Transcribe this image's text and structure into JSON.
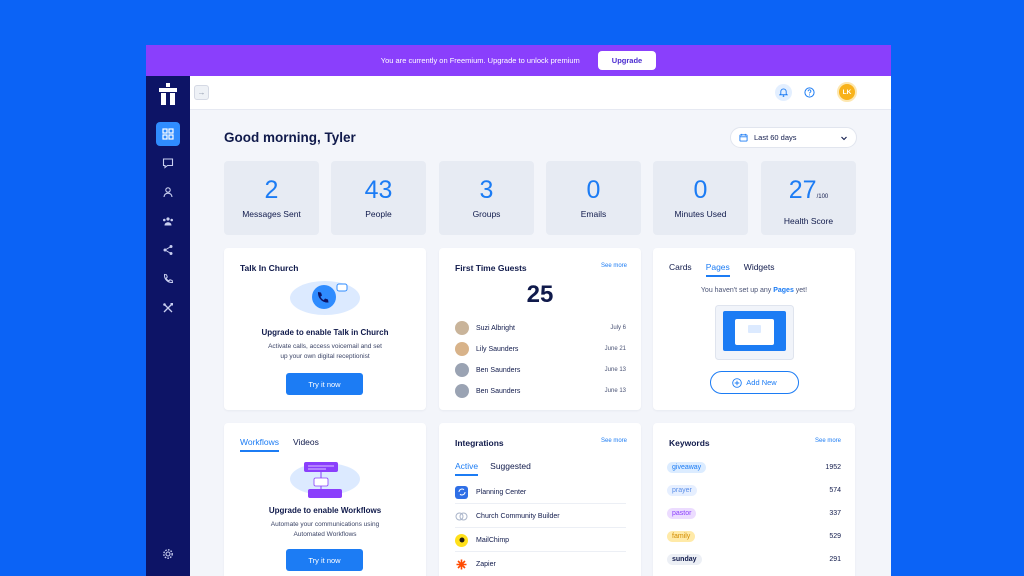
{
  "banner": {
    "text": "You are currently on Freemium. Upgrade to unlock premium",
    "button": "Upgrade"
  },
  "topbar": {
    "avatar_initials": "LK"
  },
  "greeting": "Good morning, Tyler",
  "date_filter": "Last 60 days",
  "stats": [
    {
      "value": "2",
      "label": "Messages Sent"
    },
    {
      "value": "43",
      "label": "People"
    },
    {
      "value": "3",
      "label": "Groups"
    },
    {
      "value": "0",
      "label": "Emails"
    },
    {
      "value": "0",
      "label": "Minutes Used"
    },
    {
      "value": "27",
      "suffix": "/100",
      "label": "Health Score"
    }
  ],
  "talk": {
    "title": "Talk In Church",
    "heading": "Upgrade to enable Talk in Church",
    "desc": "Activate calls, access voicemail and set up your own digital receptionist",
    "button": "Try it now"
  },
  "guests": {
    "title": "First Time Guests",
    "see_more": "See more",
    "count": "25",
    "items": [
      {
        "name": "Suzi Albright",
        "date": "July 6"
      },
      {
        "name": "Lily Saunders",
        "date": "June 21"
      },
      {
        "name": "Ben Saunders",
        "date": "June 13"
      },
      {
        "name": "Ben Saunders",
        "date": "June 13"
      }
    ]
  },
  "pages": {
    "tabs": [
      "Cards",
      "Pages",
      "Widgets"
    ],
    "empty_pre": "You haven't set up any ",
    "empty_bold": "Pages",
    "empty_post": " yet!",
    "add_new": "Add New"
  },
  "workflows": {
    "tabs": [
      "Workflows",
      "Videos"
    ],
    "heading": "Upgrade to enable Workflows",
    "desc": "Automate your communications using Automated Workflows",
    "button": "Try it now"
  },
  "integrations": {
    "title": "Integrations",
    "see_more": "See more",
    "tabs": [
      "Active",
      "Suggested"
    ],
    "items": [
      "Planning Center",
      "Church Community Builder",
      "MailChimp",
      "Zapier"
    ]
  },
  "keywords": {
    "title": "Keywords",
    "see_more": "See more",
    "items": [
      {
        "word": "giveaway",
        "count": "1952",
        "bg": "#dcecff",
        "fg": "#1c7cf4"
      },
      {
        "word": "prayer",
        "count": "574",
        "bg": "#e6efff",
        "fg": "#5a8ee8"
      },
      {
        "word": "pastor",
        "count": "337",
        "bg": "#ecdcff",
        "fg": "#8a3ffc"
      },
      {
        "word": "family",
        "count": "529",
        "bg": "#ffeaa8",
        "fg": "#d18b00"
      },
      {
        "word": "sunday",
        "count": "291",
        "bg": "#eceff5",
        "fg": "#101a4b"
      }
    ]
  },
  "colors": {
    "page_bg": "#0b63f6",
    "banner": "#8a3ffc",
    "sidebar": "#0d1466",
    "accent": "#1c7cf4"
  }
}
